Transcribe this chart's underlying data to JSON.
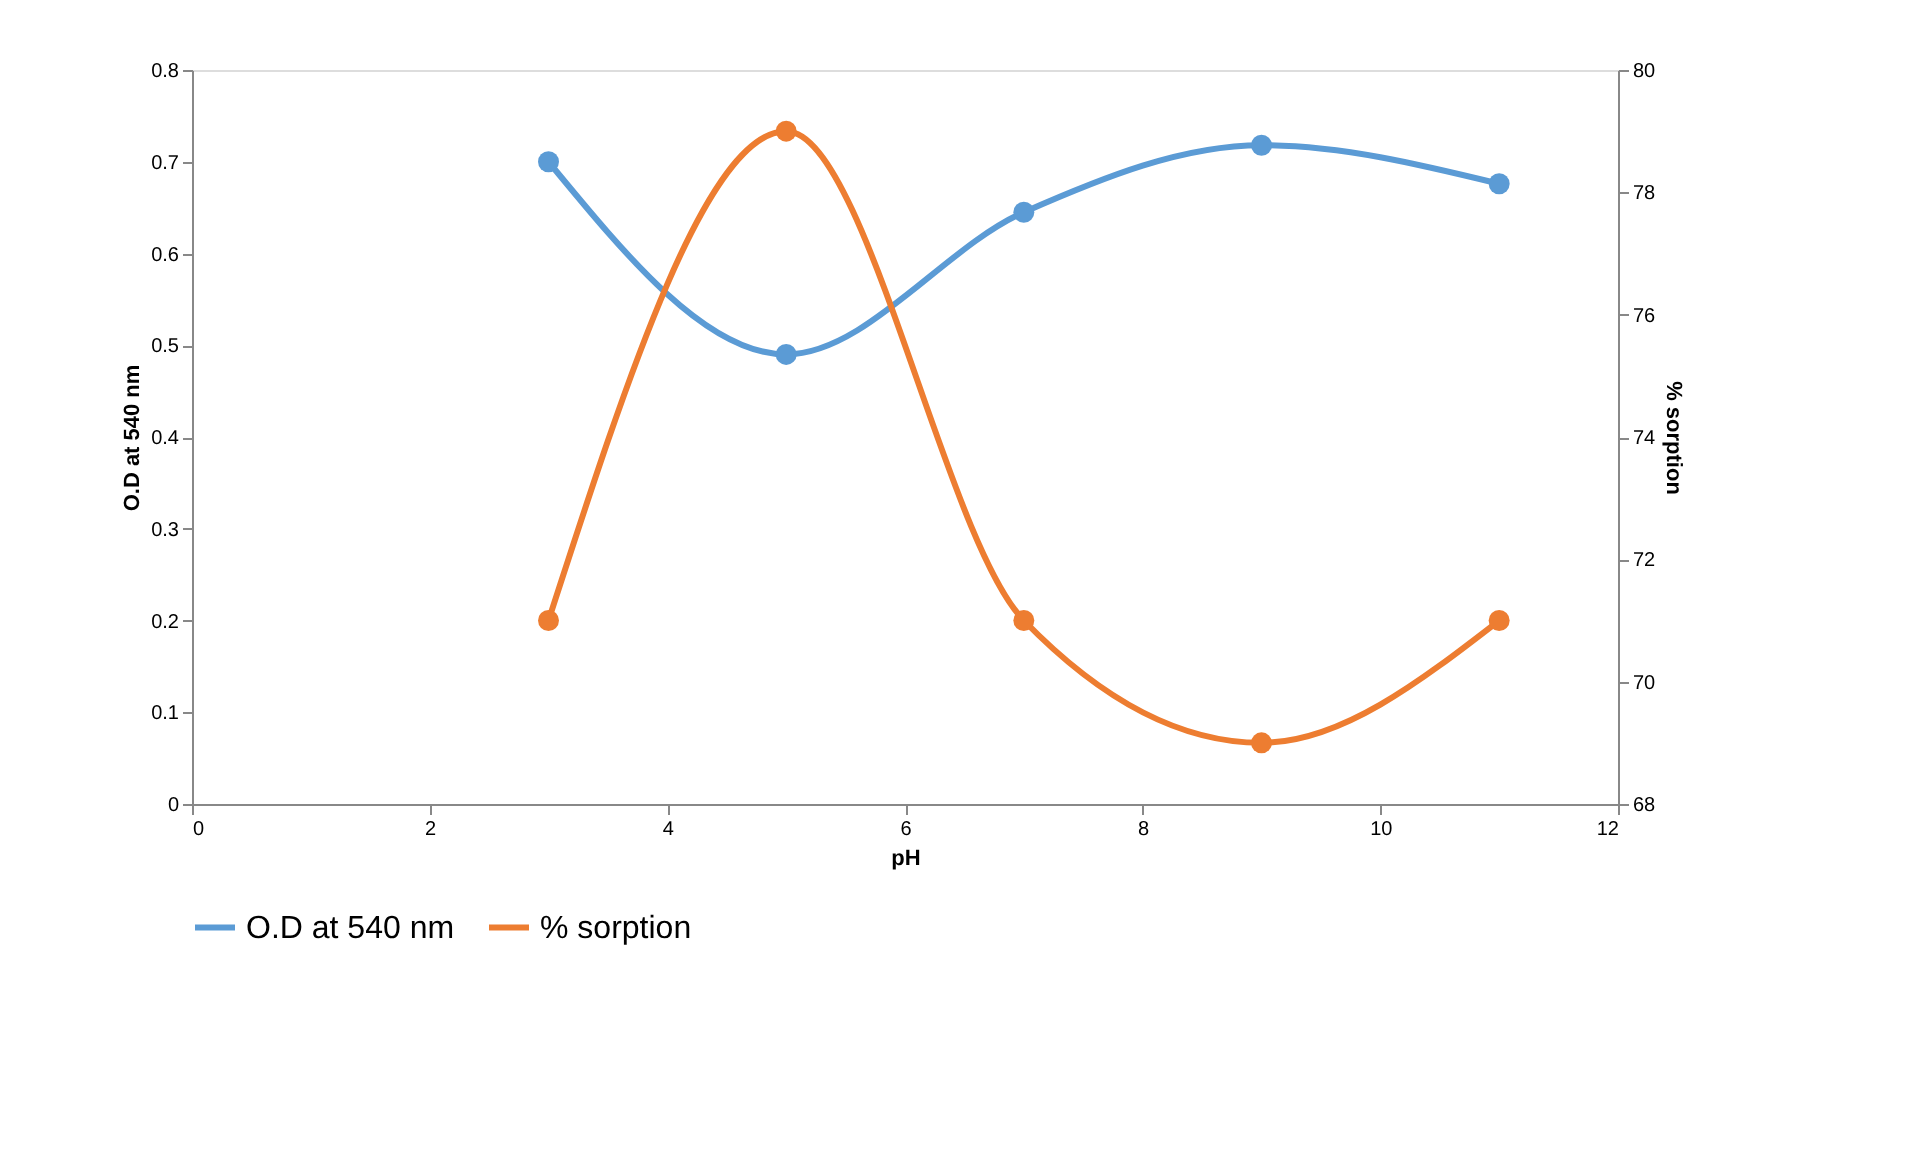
{
  "chart_data": {
    "type": "line",
    "xlabel": "pH",
    "ylabel": "O.D at 540 nm",
    "y2label": "% sorption",
    "x": [
      3,
      5,
      7,
      9,
      11
    ],
    "series": [
      {
        "name": "O.D at 540 nm",
        "color": "#5b9bd5",
        "values": [
          0.7,
          0.49,
          0.645,
          0.718,
          0.676
        ]
      },
      {
        "name": "% sorption",
        "color": "#ed7d31",
        "values": [
          71,
          79,
          71,
          69,
          71
        ],
        "axis": "y2"
      }
    ],
    "xlim": [
      0,
      12
    ],
    "xticks": [
      0,
      2,
      4,
      6,
      8,
      10,
      12
    ],
    "ylim": [
      0,
      0.8
    ],
    "yticks": [
      0,
      0.1,
      0.2,
      0.3,
      0.4,
      0.5,
      0.6,
      0.7,
      0.8
    ],
    "y2lim": [
      68,
      80
    ],
    "y2ticks": [
      68,
      70,
      72,
      74,
      76,
      78,
      80
    ],
    "grid": false,
    "legend": "bottom",
    "marker": "circle",
    "line_style": "solid"
  }
}
